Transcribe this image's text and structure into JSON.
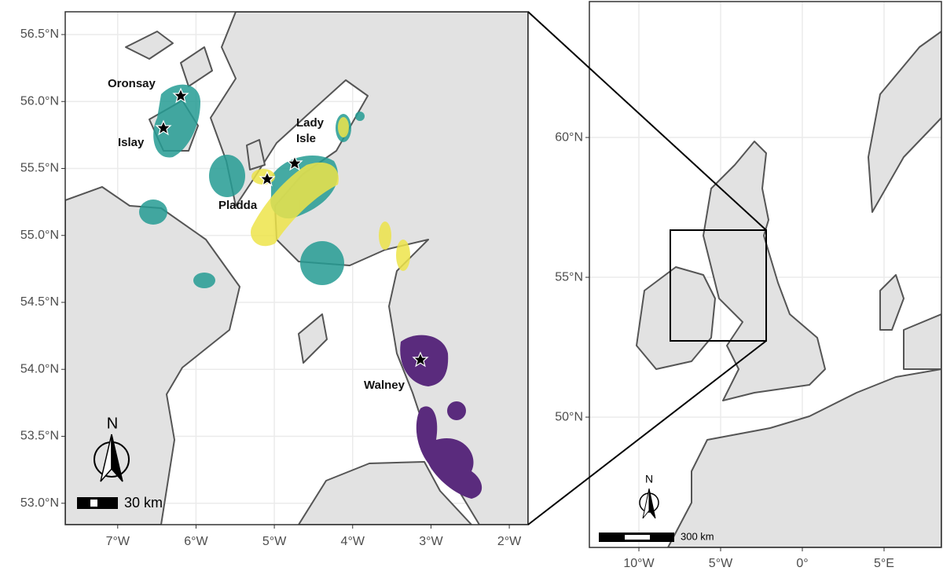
{
  "maps": [
    {
      "xlim": [
        -7.67,
        -1.76
      ],
      "ylim": [
        52.84,
        56.67
      ],
      "xticks": [
        {
          "value": -7,
          "label": "7°W"
        },
        {
          "value": -6,
          "label": "6°W"
        },
        {
          "value": -5,
          "label": "5°W"
        },
        {
          "value": -4,
          "label": "4°W"
        },
        {
          "value": -3,
          "label": "3°W"
        },
        {
          "value": -2,
          "label": "2°W"
        }
      ],
      "yticks": [
        {
          "value": 53.0,
          "label": "53.0°N"
        },
        {
          "value": 53.5,
          "label": "53.5°N"
        },
        {
          "value": 54.0,
          "label": "54.0°N"
        },
        {
          "value": 54.5,
          "label": "54.5°N"
        },
        {
          "value": 55.0,
          "label": "55.0°N"
        },
        {
          "value": 55.5,
          "label": "55.5°N"
        },
        {
          "value": 56.0,
          "label": "56.0°N"
        },
        {
          "value": 56.5,
          "label": "56.5°N"
        }
      ],
      "colonies": [
        "Oronsay",
        "Islay",
        "Lady Isle",
        "Pladda",
        "Walney"
      ],
      "north": "N",
      "scale_label": "30 km"
    },
    {
      "xlim": [
        -13.03,
        8.51
      ],
      "ylim": [
        45.34,
        64.86
      ],
      "xticks": [
        {
          "value": -10,
          "label": "10°W"
        },
        {
          "value": -5,
          "label": "5°W"
        },
        {
          "value": 0,
          "label": "0°"
        },
        {
          "value": 5,
          "label": "5°E"
        }
      ],
      "yticks": [
        {
          "value": 50,
          "label": "50°N"
        },
        {
          "value": 55,
          "label": "55°N"
        },
        {
          "value": 60,
          "label": "60°N"
        }
      ],
      "north": "N",
      "scale_label": "300 km"
    }
  ]
}
